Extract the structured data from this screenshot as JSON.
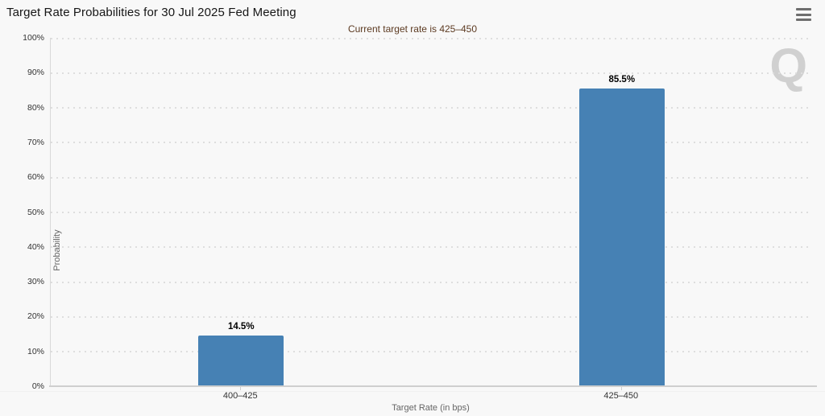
{
  "header": {
    "title": "Target Rate Probabilities for 30 Jul 2025 Fed Meeting",
    "menu_icon": "hamburger-menu-icon"
  },
  "watermark": "Q",
  "chart_data": {
    "type": "bar",
    "title": "Target Rate Probabilities for 30 Jul 2025 Fed Meeting",
    "subtitle": "Current target rate is 425–450",
    "categories": [
      "400–425",
      "425–450"
    ],
    "values": [
      14.5,
      85.5
    ],
    "data_labels": [
      "14.5%",
      "85.5%"
    ],
    "xlabel": "Target Rate (in bps)",
    "ylabel": "Probability",
    "ylim": [
      0,
      100
    ],
    "ytick_step": 10,
    "ytick_labels": [
      "0%",
      "10%",
      "20%",
      "30%",
      "40%",
      "50%",
      "60%",
      "70%",
      "80%",
      "90%",
      "100%"
    ],
    "grid": "dotted-horizontal",
    "legend": "none",
    "bar_color": "#4681b4",
    "subtitle_color": "#5c3a21",
    "background_color": "#f8f8f8"
  }
}
